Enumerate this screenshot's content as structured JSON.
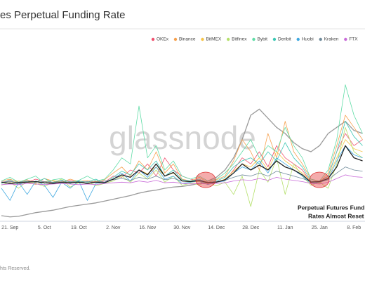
{
  "chart_data": {
    "type": "line",
    "title": "es Perpetual Funding Rate",
    "watermark": "glassnode",
    "footer": "hts Reserved.",
    "annotations": [
      "Perpetual Futures Fund",
      "Rates Almost Reset"
    ],
    "categories": [
      null,
      "21. Sep",
      null,
      null,
      null,
      "5. Oct",
      null,
      null,
      null,
      "19. Oct",
      null,
      null,
      null,
      "2. Nov",
      null,
      null,
      null,
      "16. Nov",
      null,
      null,
      null,
      "30. Nov",
      null,
      null,
      null,
      "14. Dec",
      null,
      null,
      null,
      "28. Dec",
      null,
      null,
      null,
      "11. Jan",
      null,
      null,
      null,
      "25. Jan",
      null,
      null,
      null,
      "8. Feb",
      null
    ],
    "ylim": [
      -0.06,
      0.24
    ],
    "series": [
      {
        "color": "#9a9a9a",
        "values": [
          -0.045,
          -0.047,
          -0.046,
          -0.043,
          -0.04,
          -0.038,
          -0.036,
          -0.033,
          -0.03,
          -0.028,
          -0.026,
          -0.024,
          -0.021,
          -0.018,
          -0.015,
          -0.012,
          -0.008,
          -0.005,
          -0.003,
          0.0,
          0.002,
          0.003,
          0.005,
          0.008,
          0.012,
          0.018,
          0.03,
          0.05,
          0.08,
          0.12,
          0.13,
          0.115,
          0.1,
          0.09,
          0.075,
          0.065,
          0.06,
          0.07,
          0.09,
          0.1,
          0.11,
          0.095,
          0.09
        ]
      },
      {
        "name": "OKEx",
        "color": "#f0506e",
        "values": [
          0.01,
          0.012,
          0.008,
          0.01,
          0.015,
          0.011,
          0.009,
          0.01,
          0.013,
          0.01,
          0.008,
          0.012,
          0.01,
          0.02,
          0.018,
          0.03,
          0.025,
          0.04,
          0.02,
          0.05,
          0.03,
          0.02,
          0.015,
          0.012,
          0.01,
          0.01,
          0.012,
          0.03,
          0.05,
          0.04,
          0.06,
          0.035,
          0.07,
          0.05,
          0.04,
          0.03,
          0.01,
          0.012,
          0.02,
          0.06,
          0.09,
          0.07,
          0.08
        ]
      },
      {
        "name": "Binance",
        "color": "#f6a04d",
        "values": [
          0.012,
          0.015,
          0.01,
          0.014,
          0.009,
          0.016,
          0.012,
          0.01,
          0.015,
          0.011,
          0.013,
          0.01,
          0.014,
          0.025,
          0.035,
          0.02,
          0.045,
          0.03,
          0.06,
          0.025,
          0.04,
          0.015,
          0.012,
          0.018,
          0.01,
          0.014,
          0.02,
          0.045,
          0.08,
          0.06,
          0.03,
          0.09,
          0.05,
          0.11,
          0.06,
          0.04,
          0.015,
          0.01,
          0.025,
          0.07,
          0.12,
          0.1,
          0.08
        ]
      },
      {
        "name": "BitMEX",
        "color": "#f7c548",
        "values": [
          0.01,
          0.008,
          0.012,
          0.01,
          0.006,
          0.011,
          0.013,
          0.009,
          0.01,
          0.012,
          0.007,
          0.011,
          0.009,
          0.015,
          0.022,
          0.018,
          0.03,
          0.024,
          0.035,
          0.02,
          0.025,
          0.012,
          0.01,
          0.011,
          0.008,
          0.01,
          0.015,
          0.028,
          0.04,
          0.035,
          0.05,
          0.03,
          0.06,
          0.045,
          0.035,
          0.025,
          0.012,
          0.008,
          0.018,
          0.05,
          0.08,
          0.065,
          0.06
        ]
      },
      {
        "name": "Bitfinex",
        "color": "#b4e06a",
        "values": [
          0.005,
          0.01,
          0.0,
          0.012,
          0.008,
          0.003,
          0.01,
          0.015,
          0.002,
          0.009,
          0.011,
          0.004,
          0.008,
          0.012,
          0.02,
          0.01,
          0.025,
          0.015,
          0.03,
          0.01,
          0.02,
          0.005,
          0.008,
          0.006,
          0.01,
          0.004,
          0.01,
          -0.01,
          0.02,
          -0.03,
          0.03,
          0.01,
          0.05,
          -0.01,
          0.04,
          0.02,
          0.005,
          0.01,
          0.0,
          0.04,
          0.1,
          0.06,
          0.05
        ]
      },
      {
        "name": "Bybit",
        "color": "#5fdca6",
        "values": [
          0.012,
          0.018,
          0.01,
          0.015,
          0.02,
          0.008,
          0.014,
          0.016,
          0.01,
          0.013,
          0.02,
          0.012,
          0.015,
          0.03,
          0.05,
          0.04,
          0.135,
          0.05,
          0.07,
          0.03,
          0.045,
          0.02,
          0.015,
          0.02,
          0.012,
          0.015,
          0.025,
          0.04,
          0.06,
          0.08,
          0.05,
          0.07,
          0.06,
          0.1,
          0.07,
          0.05,
          0.015,
          0.012,
          0.03,
          0.08,
          0.17,
          0.12,
          0.09
        ]
      },
      {
        "name": "Deribit",
        "color": "#3cc7b4",
        "values": [
          0.008,
          0.014,
          0.006,
          0.012,
          0.01,
          0.016,
          0.009,
          0.013,
          0.008,
          0.012,
          0.01,
          0.015,
          0.008,
          0.018,
          0.028,
          0.022,
          0.04,
          0.03,
          0.045,
          0.02,
          0.03,
          0.014,
          0.012,
          0.015,
          0.009,
          0.012,
          0.018,
          0.035,
          0.045,
          0.05,
          0.04,
          0.06,
          0.045,
          0.075,
          0.05,
          0.035,
          0.012,
          0.01,
          0.02,
          0.06,
          0.11,
          0.085,
          0.07
        ]
      },
      {
        "name": "Huobi",
        "color": "#3fa8e0",
        "values": [
          0.0,
          -0.02,
          0.01,
          -0.01,
          0.012,
          0.005,
          -0.015,
          0.01,
          0.0,
          0.012,
          -0.02,
          0.008,
          0.01,
          0.015,
          0.025,
          0.012,
          0.03,
          0.018,
          0.035,
          0.015,
          0.02,
          0.008,
          0.01,
          0.012,
          0.006,
          0.01,
          0.012,
          0.025,
          0.035,
          0.03,
          0.045,
          0.025,
          0.05,
          0.04,
          0.03,
          0.02,
          0.008,
          0.01,
          0.015,
          0.045,
          0.07,
          0.055,
          0.05
        ]
      },
      {
        "name": "Kraken",
        "color": "#6f8a9a",
        "values": [
          0.01,
          0.011,
          0.01,
          0.012,
          0.01,
          0.011,
          0.01,
          0.012,
          0.011,
          0.01,
          0.011,
          0.01,
          0.012,
          0.014,
          0.016,
          0.013,
          0.018,
          0.015,
          0.02,
          0.014,
          0.016,
          0.012,
          0.011,
          0.012,
          0.01,
          0.011,
          0.013,
          0.018,
          0.022,
          0.02,
          0.025,
          0.02,
          0.028,
          0.024,
          0.02,
          0.016,
          0.011,
          0.01,
          0.014,
          0.025,
          0.035,
          0.03,
          0.028
        ]
      },
      {
        "name": "FTX",
        "color": "#c86bd8",
        "values": [
          0.006,
          0.007,
          0.006,
          0.008,
          0.007,
          0.006,
          0.007,
          0.008,
          0.007,
          0.006,
          0.007,
          0.006,
          0.008,
          0.009,
          0.01,
          0.009,
          0.012,
          0.01,
          0.013,
          0.009,
          0.01,
          0.008,
          0.007,
          0.008,
          0.007,
          0.008,
          0.009,
          0.012,
          0.014,
          0.013,
          0.016,
          0.013,
          0.018,
          0.015,
          0.013,
          0.011,
          0.008,
          0.007,
          0.01,
          0.016,
          0.022,
          0.019,
          0.018
        ]
      },
      {
        "color": "#222222",
        "values": [
          0.01,
          0.008,
          0.009,
          0.01,
          0.011,
          0.009,
          0.008,
          0.01,
          0.009,
          0.01,
          0.008,
          0.01,
          0.009,
          0.015,
          0.022,
          0.018,
          0.03,
          0.022,
          0.04,
          0.02,
          0.026,
          0.012,
          0.011,
          0.013,
          0.009,
          0.01,
          0.014,
          0.025,
          0.04,
          0.03,
          0.038,
          0.03,
          0.045,
          0.035,
          0.03,
          0.022,
          0.01,
          0.011,
          0.016,
          0.035,
          0.07,
          0.05,
          0.045
        ]
      }
    ]
  }
}
